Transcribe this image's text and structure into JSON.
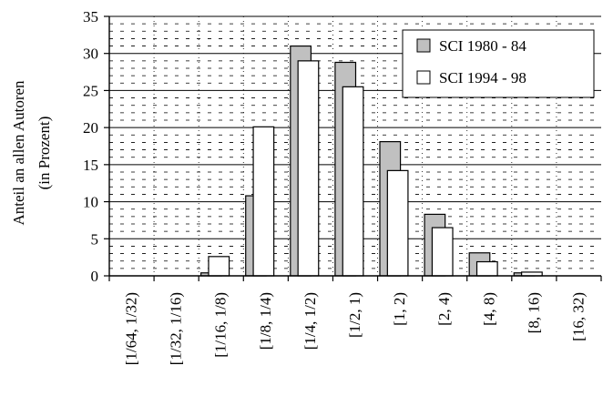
{
  "chart_data": {
    "type": "bar",
    "title": "",
    "xlabel": "",
    "ylabel_lines": [
      "Anteil an allen Autoren",
      "(in Prozent)"
    ],
    "ylim": [
      0,
      35
    ],
    "yticks": [
      0,
      5,
      10,
      15,
      20,
      25,
      30,
      35
    ],
    "grid": "horizontal (solid every 5, dashed minor lines) with dotted vertical separators",
    "legend_position": "top-right",
    "categories": [
      "[1/64, 1/32)",
      "[1/32, 1/16)",
      "[1/16, 1/8)",
      "[1/8, 1/4)",
      "[1/4, 1/2)",
      "[1/2, 1)",
      "[1, 2)",
      "[2, 4)",
      "[4, 8)",
      "[8, 16)",
      "[16, 32)"
    ],
    "series": [
      {
        "name": "SCI 1980 - 84",
        "color": "#c0c0c0",
        "values": [
          0,
          0,
          0.4,
          10.8,
          31.0,
          28.8,
          18.1,
          8.3,
          3.1,
          0.4,
          0
        ]
      },
      {
        "name": "SCI 1994 - 98",
        "color": "#ffffff",
        "values": [
          0,
          0,
          2.6,
          20.1,
          29.0,
          25.5,
          14.2,
          6.5,
          1.9,
          0.5,
          0
        ]
      }
    ]
  }
}
